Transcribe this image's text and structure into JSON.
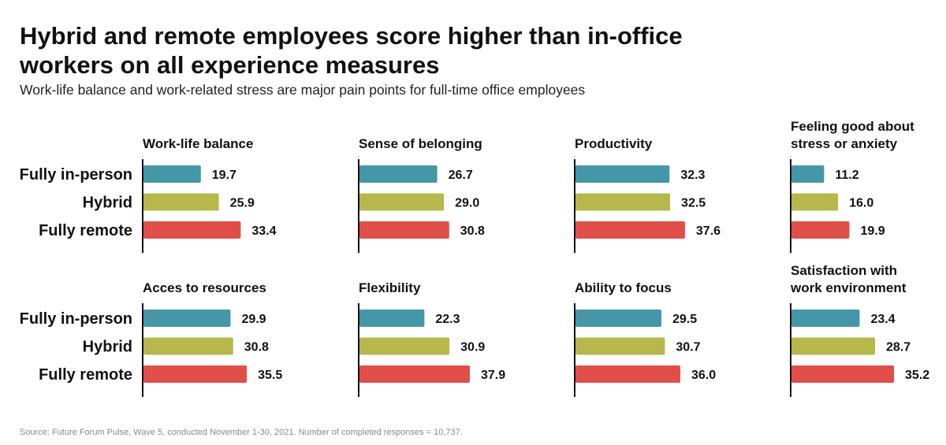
{
  "title": "Hybrid and remote employees score higher than in-office workers on all experience measures",
  "subtitle": "Work-life balance and work-related stress are major pain points for full-time office employees",
  "source": "Source: Future Forum Pulse, Wave 5, conducted November 1-30, 2021. Number of completed responses = 10,737.",
  "colors": {
    "Fully in-person": "#4596a6",
    "Hybrid": "#b6b84c",
    "Fully remote": "#df4f48",
    "axis": "#111111"
  },
  "chart_data": {
    "type": "bar",
    "orientation": "horizontal",
    "categories": [
      "Fully in-person",
      "Hybrid",
      "Fully remote"
    ],
    "xlim": [
      0,
      40
    ],
    "grid": false,
    "legend": "none",
    "panels": [
      {
        "title": [
          "Work-life balance"
        ],
        "values": [
          19.7,
          25.9,
          33.4
        ],
        "labels": [
          "19.7",
          "25.9",
          "33.4"
        ]
      },
      {
        "title": [
          "Sense of belonging"
        ],
        "values": [
          26.7,
          29.0,
          30.8
        ],
        "labels": [
          "26.7",
          "29.0",
          "30.8"
        ]
      },
      {
        "title": [
          "Productivity"
        ],
        "values": [
          32.3,
          32.5,
          37.6
        ],
        "labels": [
          "32.3",
          "32.5",
          "37.6"
        ]
      },
      {
        "title": [
          "Feeling good about",
          "stress or anxiety"
        ],
        "values": [
          11.2,
          16.0,
          19.9
        ],
        "labels": [
          "11.2",
          "16.0",
          "19.9"
        ]
      },
      {
        "title": [
          "Acces to resources"
        ],
        "values": [
          29.9,
          30.8,
          35.5
        ],
        "labels": [
          "29.9",
          "30.8",
          "35.5"
        ]
      },
      {
        "title": [
          "Flexibility"
        ],
        "values": [
          22.3,
          30.9,
          37.9
        ],
        "labels": [
          "22.3",
          "30.9",
          "37.9"
        ]
      },
      {
        "title": [
          "Ability to focus"
        ],
        "values": [
          29.5,
          30.7,
          36.0
        ],
        "labels": [
          "29.5",
          "30.7",
          "36.0"
        ]
      },
      {
        "title": [
          "Satisfaction with",
          "work environment"
        ],
        "values": [
          23.4,
          28.7,
          35.2
        ],
        "labels": [
          "23.4",
          "28.7",
          "35.2"
        ]
      }
    ]
  }
}
